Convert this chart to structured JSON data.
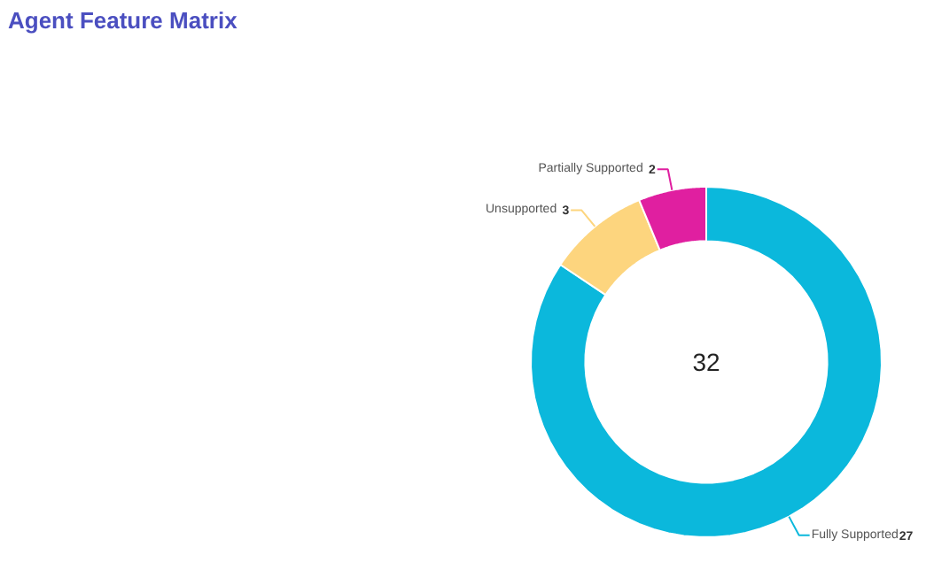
{
  "chart_data": {
    "type": "donut",
    "title": "Agent Feature Matrix",
    "categories": [
      "Fully Supported",
      "Unsupported",
      "Partially Supported"
    ],
    "values": [
      27,
      3,
      2
    ],
    "colors": [
      "#0bb8dc",
      "#fdd57e",
      "#e01fa0"
    ],
    "data_labels": true,
    "annotations": [
      "32"
    ]
  }
}
